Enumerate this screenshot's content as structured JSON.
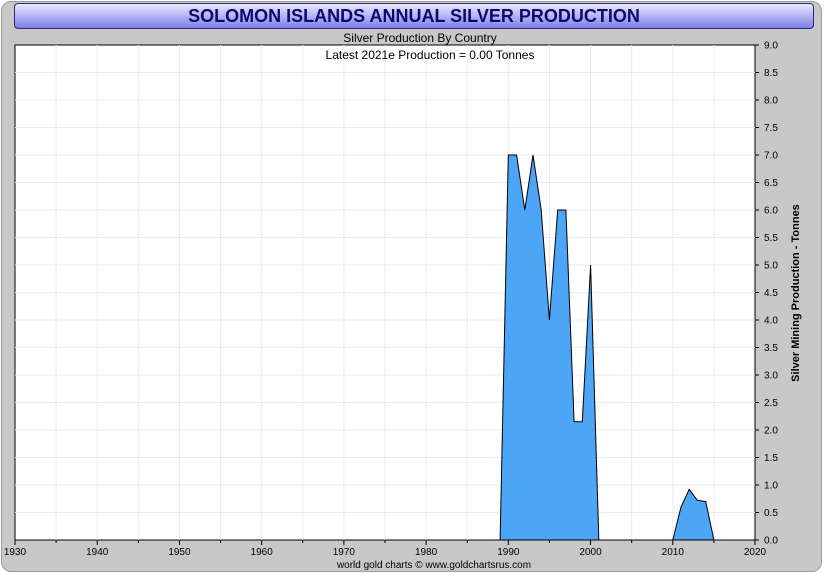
{
  "chart_data": {
    "type": "area",
    "title": "SOLOMON ISLANDS ANNUAL SILVER PRODUCTION",
    "subtitle": "Silver Production By Country",
    "annotation": "Latest 2021e  Production = 0.00 Tonnes",
    "xlabel": "",
    "ylabel": "Silver Mining Production - Tonnes",
    "footer": "world gold charts © www.goldchartsrus.com",
    "xlim": [
      1930,
      2020
    ],
    "ylim": [
      0,
      9
    ],
    "x_ticks": [
      "1930",
      "1940",
      "1950",
      "1960",
      "1970",
      "1980",
      "1990",
      "2000",
      "2010",
      "2020"
    ],
    "y_ticks": [
      "0.0",
      "0.5",
      "1.0",
      "1.5",
      "2.0",
      "2.5",
      "3.0",
      "3.5",
      "4.0",
      "4.5",
      "5.0",
      "5.5",
      "6.0",
      "6.5",
      "7.0",
      "7.5",
      "8.0",
      "8.5",
      "9.0"
    ],
    "grid": true,
    "fill_color": "#4da6f5",
    "line_color": "#000000",
    "x": [
      1989,
      1990,
      1991,
      1992,
      1993,
      1994,
      1995,
      1996,
      1997,
      1998,
      1999,
      2000,
      2001,
      2009,
      2010,
      2011,
      2012,
      2013,
      2014,
      2015
    ],
    "values": [
      0,
      7.0,
      7.0,
      6.0,
      7.0,
      6.0,
      4.0,
      6.0,
      6.0,
      2.15,
      2.15,
      5.0,
      0,
      0,
      0,
      0.6,
      0.92,
      0.72,
      0.7,
      0
    ]
  }
}
